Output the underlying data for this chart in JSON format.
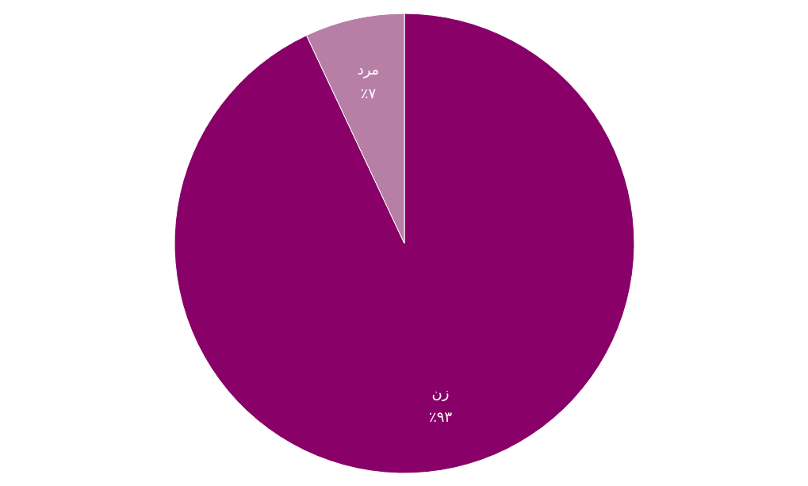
{
  "chart_data": {
    "type": "pie",
    "categories": [
      "زن",
      "مرد"
    ],
    "values": [
      93,
      7
    ],
    "colors": [
      "#880068",
      "#b77fa5"
    ],
    "value_labels": [
      "٪۹۳",
      "٪۷"
    ],
    "legend": false
  }
}
